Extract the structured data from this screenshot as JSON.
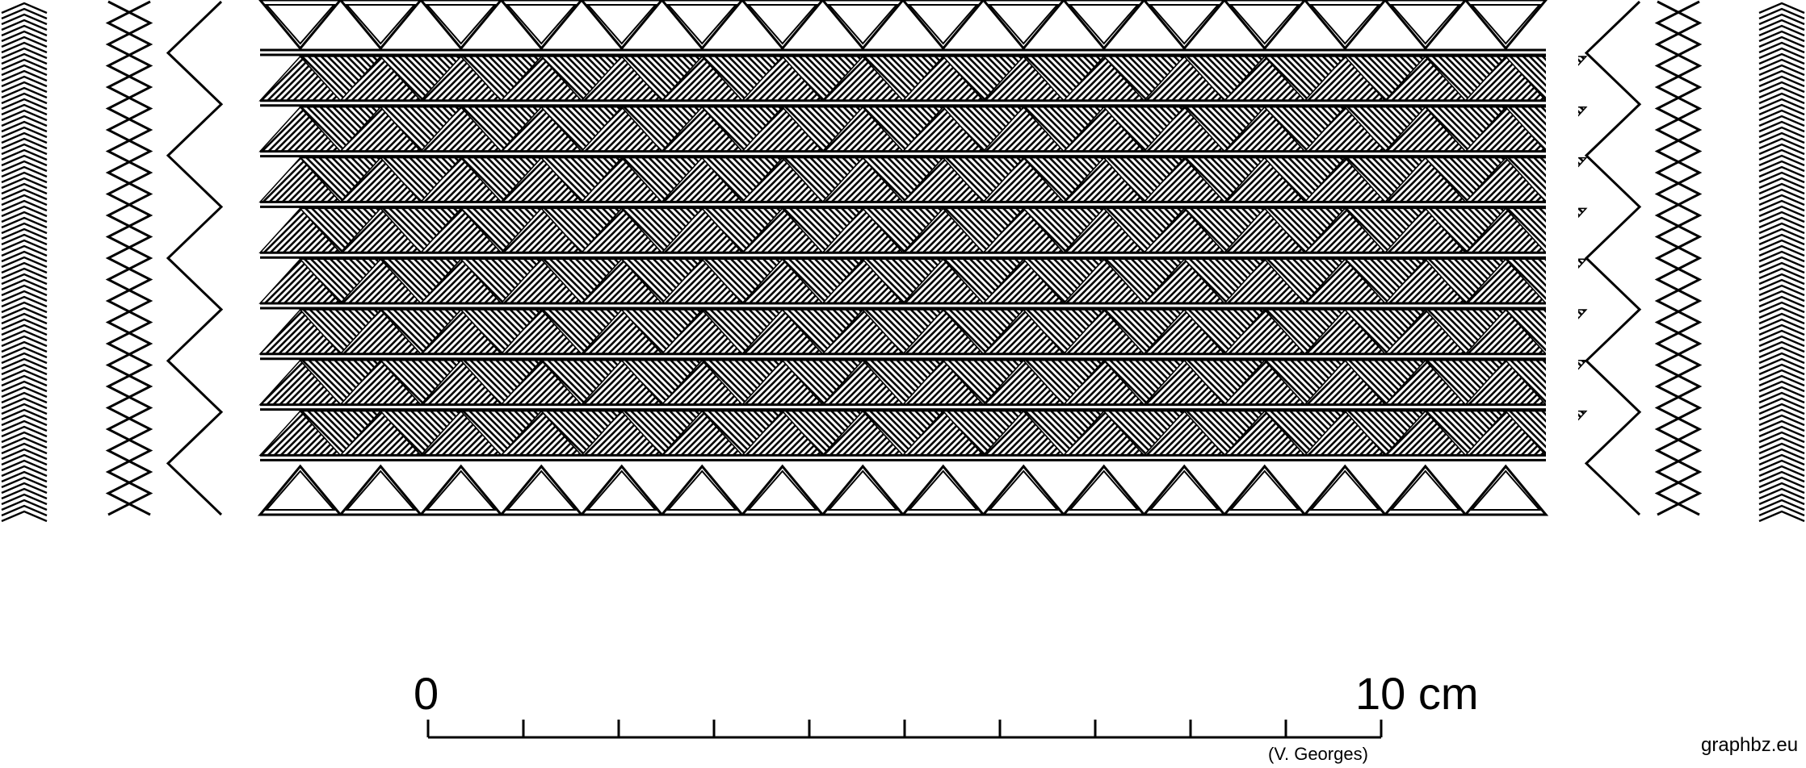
{
  "scale_bar": {
    "start_label": "0",
    "end_label": "10 cm",
    "tick_count": 11
  },
  "credit": "(V. Georges)",
  "watermark": "graphbz.eu",
  "colors": {
    "ink": "#000000",
    "background": "#ffffff"
  },
  "pattern": {
    "hatched_bands": 8,
    "triangles_per_band": 16,
    "border_triangles": 16
  }
}
